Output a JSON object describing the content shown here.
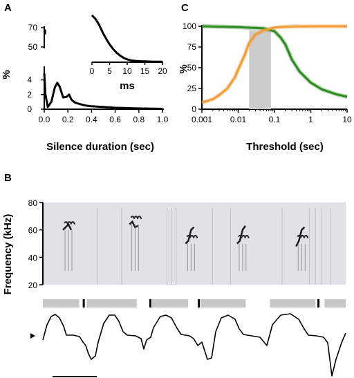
{
  "panels": {
    "a": "A",
    "b": "B",
    "c": "C"
  },
  "chart_data": [
    {
      "id": "A",
      "type": "line",
      "title": "",
      "xlabel": "Silence duration (sec)",
      "ylabel": "%",
      "xlim": [
        0,
        1.0
      ],
      "ylim_lower": [
        0,
        5
      ],
      "ylim_upper": [
        50,
        70
      ],
      "x_ticks": [
        "0.0",
        "0.2",
        "0.4",
        "0.6",
        "0.8",
        "1.0"
      ],
      "y_ticks_lower": [
        "0",
        "2",
        "4"
      ],
      "y_ticks_upper": [
        "50",
        "70"
      ],
      "series": [
        {
          "x": [
            0.0,
            0.01,
            0.03,
            0.06,
            0.09,
            0.11,
            0.13,
            0.16,
            0.19,
            0.21,
            0.23,
            0.26,
            0.3,
            0.35,
            0.4,
            0.5,
            0.6,
            0.7,
            0.8,
            0.9,
            1.0
          ],
          "y": [
            4.9,
            2.0,
            0.3,
            1.0,
            3.0,
            3.6,
            3.1,
            1.6,
            1.7,
            2.0,
            1.3,
            0.9,
            0.7,
            0.5,
            0.4,
            0.3,
            0.2,
            0.15,
            0.1,
            0.08,
            0.05
          ]
        }
      ],
      "inset": {
        "type": "line",
        "xlabel": "ms",
        "xlim": [
          0,
          20
        ],
        "x_ticks": [
          "0",
          "5",
          "10",
          "15",
          "20"
        ],
        "series": [
          {
            "x": [
              0,
              1,
              2,
              3,
              4,
              5,
              6,
              7,
              8,
              9,
              10,
              11,
              12,
              14,
              16,
              18,
              20
            ],
            "y": [
              100,
              92,
              80,
              64,
              50,
              38,
              28,
              20,
              14,
              9,
              6,
              4,
              3,
              2,
              1.5,
              1,
              1
            ]
          }
        ]
      }
    },
    {
      "id": "C",
      "type": "line",
      "title": "",
      "xlabel": "Threshold (sec)",
      "ylabel": "%",
      "xscale": "log",
      "xlim": [
        0.001,
        10
      ],
      "ylim": [
        0,
        100
      ],
      "x_ticks": [
        "0.001",
        "0.01",
        "0.1",
        "1",
        "10"
      ],
      "y_ticks": [
        "0",
        "25",
        "50",
        "75",
        "100"
      ],
      "shaded_region": [
        0.02,
        0.08
      ],
      "colors": {
        "green": "#2e8b22",
        "orange": "#f29c38",
        "shade": "#cccccc"
      },
      "series": [
        {
          "color": "green",
          "x": [
            0.001,
            0.01,
            0.05,
            0.1,
            0.15,
            0.2,
            0.3,
            0.5,
            1,
            2,
            5,
            10
          ],
          "y": [
            100,
            99,
            97.5,
            94,
            86,
            78,
            60,
            45,
            32,
            24,
            18,
            15
          ]
        },
        {
          "color": "orange",
          "x": [
            0.001,
            0.002,
            0.003,
            0.005,
            0.008,
            0.01,
            0.015,
            0.02,
            0.03,
            0.05,
            0.08,
            0.1,
            0.2,
            0.5,
            1,
            2,
            5,
            10
          ],
          "y": [
            8,
            12,
            17,
            25,
            38,
            48,
            65,
            80,
            90,
            95,
            97.5,
            98.5,
            99.5,
            99.8,
            99.9,
            100,
            100,
            100
          ]
        }
      ]
    },
    {
      "id": "B",
      "type": "spectrogram",
      "title": "",
      "xlabel": "",
      "ylabel": "Frequency (kHz)",
      "ylim": [
        20,
        80
      ],
      "y_ticks": [
        "20",
        "40",
        "60",
        "80"
      ],
      "syllables": [
        {
          "t": 0.08,
          "f": [
            60,
            62,
            64,
            60
          ]
        },
        {
          "t": 0.3,
          "f": [
            64,
            66,
            62,
            63
          ]
        },
        {
          "t": 0.485,
          "f": [
            50,
            52,
            60,
            62
          ]
        },
        {
          "t": 0.655,
          "f": [
            50,
            52,
            60,
            63
          ]
        },
        {
          "t": 0.85,
          "f": [
            48,
            52,
            60,
            62
          ]
        }
      ],
      "silence_bars": [
        [
          0.0,
          0.12
        ],
        [
          0.145,
          0.31
        ],
        [
          0.36,
          0.48
        ],
        [
          0.52,
          0.67
        ],
        [
          0.75,
          0.9
        ],
        [
          0.93,
          1.0
        ]
      ],
      "event_ticks": [
        0.135,
        0.355,
        0.515,
        0.91
      ]
    }
  ]
}
